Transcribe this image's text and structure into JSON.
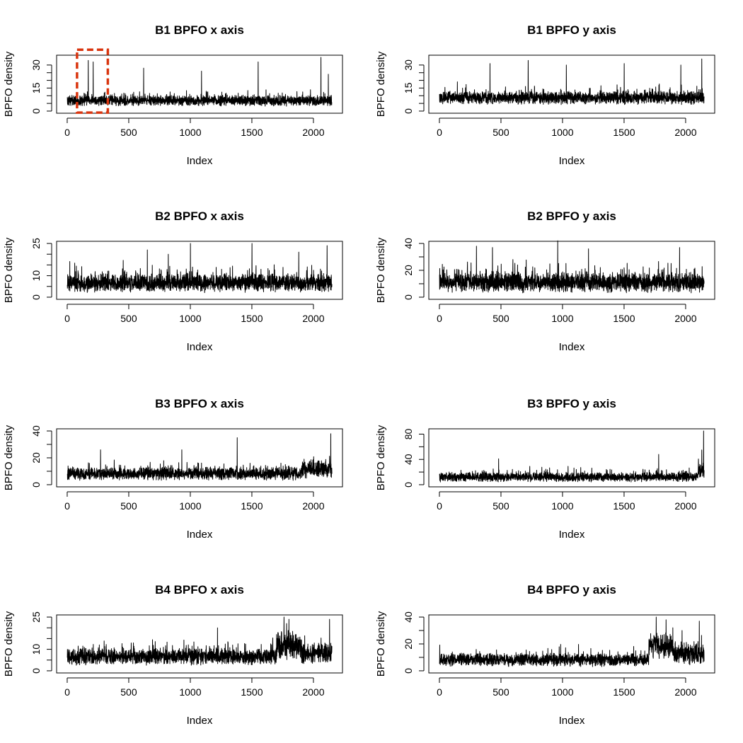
{
  "figure": {
    "highlight_color": "#d9350f",
    "line_color": "#000000"
  },
  "chart_data": [
    {
      "type": "line",
      "title": "B1 BPFO x axis",
      "xlabel": "Index",
      "ylabel": "BPFO density",
      "xlim": [
        0,
        2150
      ],
      "ylim": [
        0,
        35
      ],
      "x_ticks": [
        0,
        500,
        1000,
        1500,
        2000
      ],
      "y_ticks": [
        0,
        5,
        10,
        15,
        20,
        25,
        30
      ],
      "y_tick_labels": [
        "0",
        "",
        "",
        "15",
        "",
        "",
        "30"
      ],
      "n": 2150,
      "series": [
        {
          "segments": [
            {
              "from": 0,
              "to": 2150,
              "baseline": 3.0,
              "amplitude": 6.5
            }
          ],
          "peaks": [
            [
              170,
              33
            ],
            [
              210,
              32
            ],
            [
              620,
              28
            ],
            [
              1550,
              32
            ],
            [
              2060,
              35
            ],
            [
              1090,
              26
            ],
            [
              2120,
              24
            ]
          ]
        }
      ],
      "annotation": {
        "type": "dashed-rectangle",
        "x_range": [
          80,
          330
        ],
        "y_range": [
          -1,
          40
        ]
      }
    },
    {
      "type": "line",
      "title": "B1 BPFO y axis",
      "xlabel": "Index",
      "ylabel": "BPFO density",
      "xlim": [
        0,
        2150
      ],
      "ylim": [
        0,
        35
      ],
      "x_ticks": [
        0,
        500,
        1000,
        1500,
        2000
      ],
      "y_ticks": [
        0,
        5,
        10,
        15,
        20,
        25,
        30
      ],
      "y_tick_labels": [
        "0",
        "",
        "",
        "15",
        "",
        "",
        "30"
      ],
      "n": 2150,
      "series": [
        {
          "segments": [
            {
              "from": 0,
              "to": 2150,
              "baseline": 4.0,
              "amplitude": 8.0
            }
          ],
          "peaks": [
            [
              410,
              31
            ],
            [
              720,
              33
            ],
            [
              1030,
              30
            ],
            [
              1500,
              31
            ],
            [
              1960,
              30
            ],
            [
              2130,
              34
            ]
          ]
        }
      ]
    },
    {
      "type": "line",
      "title": "B2 BPFO x axis",
      "xlabel": "Index",
      "ylabel": "BPFO density",
      "xlim": [
        0,
        2150
      ],
      "ylim": [
        0,
        25
      ],
      "x_ticks": [
        0,
        500,
        1000,
        1500,
        2000
      ],
      "y_ticks": [
        0,
        5,
        10,
        15,
        20,
        25
      ],
      "y_tick_labels": [
        "0",
        "",
        "10",
        "",
        "",
        "25"
      ],
      "n": 2150,
      "series": [
        {
          "segments": [
            {
              "from": 0,
              "to": 2150,
              "baseline": 2.0,
              "amplitude": 8.0
            }
          ],
          "peaks": [
            [
              650,
              22
            ],
            [
              1000,
              25
            ],
            [
              1500,
              25
            ],
            [
              2110,
              24
            ],
            [
              820,
              20
            ],
            [
              1880,
              21
            ]
          ]
        }
      ]
    },
    {
      "type": "line",
      "title": "B2 BPFO y axis",
      "xlabel": "Index",
      "ylabel": "BPFO density",
      "xlim": [
        0,
        2150
      ],
      "ylim": [
        0,
        40
      ],
      "x_ticks": [
        0,
        500,
        1000,
        1500,
        2000
      ],
      "y_ticks": [
        0,
        10,
        20,
        30,
        40
      ],
      "y_tick_labels": [
        "0",
        "",
        "20",
        "",
        "40"
      ],
      "n": 2150,
      "series": [
        {
          "segments": [
            {
              "from": 0,
              "to": 2150,
              "baseline": 3.0,
              "amplitude": 14.0
            }
          ],
          "peaks": [
            [
              300,
              38
            ],
            [
              430,
              37
            ],
            [
              960,
              42
            ],
            [
              1210,
              36
            ],
            [
              1950,
              37
            ]
          ]
        }
      ]
    },
    {
      "type": "line",
      "title": "B3 BPFO x axis",
      "xlabel": "Index",
      "ylabel": "BPFO density",
      "xlim": [
        0,
        2150
      ],
      "ylim": [
        0,
        40
      ],
      "x_ticks": [
        0,
        500,
        1000,
        1500,
        2000
      ],
      "y_ticks": [
        0,
        10,
        20,
        30,
        40
      ],
      "y_tick_labels": [
        "0",
        "",
        "20",
        "",
        "40"
      ],
      "n": 2150,
      "series": [
        {
          "segments": [
            {
              "from": 0,
              "to": 1900,
              "baseline": 3.0,
              "amplitude": 9.0
            },
            {
              "from": 1900,
              "to": 2150,
              "baseline": 4.0,
              "amplitude": 13.0
            }
          ],
          "peaks": [
            [
              270,
              26
            ],
            [
              930,
              26
            ],
            [
              1380,
              35
            ],
            [
              2140,
              38
            ],
            [
              2150,
              33
            ]
          ]
        }
      ]
    },
    {
      "type": "line",
      "title": "B3 BPFO y axis",
      "xlabel": "Index",
      "ylabel": "BPFO density",
      "xlim": [
        0,
        2150
      ],
      "ylim": [
        0,
        85
      ],
      "x_ticks": [
        0,
        500,
        1000,
        1500,
        2000
      ],
      "y_ticks": [
        0,
        20,
        40,
        60,
        80
      ],
      "y_tick_labels": [
        "0",
        "",
        "40",
        "",
        "80"
      ],
      "n": 2150,
      "series": [
        {
          "segments": [
            {
              "from": 0,
              "to": 2100,
              "baseline": 4.0,
              "amplitude": 14.0
            },
            {
              "from": 2100,
              "to": 2150,
              "baseline": 8.0,
              "amplitude": 30.0
            }
          ],
          "peaks": [
            [
              480,
              41
            ],
            [
              1780,
              48
            ],
            [
              2130,
              55
            ],
            [
              2145,
              85
            ]
          ]
        }
      ]
    },
    {
      "type": "line",
      "title": "B4 BPFO x axis",
      "xlabel": "Index",
      "ylabel": "BPFO density",
      "xlim": [
        0,
        2150
      ],
      "ylim": [
        0,
        25
      ],
      "x_ticks": [
        0,
        500,
        1000,
        1500,
        2000
      ],
      "y_ticks": [
        0,
        5,
        10,
        15,
        20,
        25
      ],
      "y_tick_labels": [
        "0",
        "",
        "10",
        "",
        "",
        "25"
      ],
      "n": 2150,
      "series": [
        {
          "segments": [
            {
              "from": 0,
              "to": 1700,
              "baseline": 2.5,
              "amplitude": 7.0
            },
            {
              "from": 1700,
              "to": 1900,
              "baseline": 5.0,
              "amplitude": 12.0
            },
            {
              "from": 1900,
              "to": 2150,
              "baseline": 3.0,
              "amplitude": 9.0
            }
          ],
          "peaks": [
            [
              1760,
              25
            ],
            [
              1800,
              24
            ],
            [
              2130,
              24
            ],
            [
              1220,
              20
            ]
          ]
        }
      ]
    },
    {
      "type": "line",
      "title": "B4 BPFO y axis",
      "xlabel": "Index",
      "ylabel": "BPFO density",
      "xlim": [
        0,
        2150
      ],
      "ylim": [
        0,
        40
      ],
      "x_ticks": [
        0,
        500,
        1000,
        1500,
        2000
      ],
      "y_ticks": [
        0,
        10,
        20,
        30,
        40
      ],
      "y_tick_labels": [
        "0",
        "",
        "20",
        "",
        "40"
      ],
      "n": 2150,
      "series": [
        {
          "segments": [
            {
              "from": 0,
              "to": 1700,
              "baseline": 3.0,
              "amplitude": 9.0
            },
            {
              "from": 1700,
              "to": 1900,
              "baseline": 8.0,
              "amplitude": 18.0
            },
            {
              "from": 1900,
              "to": 2150,
              "baseline": 4.0,
              "amplitude": 14.0
            }
          ],
          "peaks": [
            [
              1760,
              40
            ],
            [
              1840,
              38
            ],
            [
              2110,
              37
            ],
            [
              1970,
              30
            ]
          ]
        }
      ]
    }
  ]
}
